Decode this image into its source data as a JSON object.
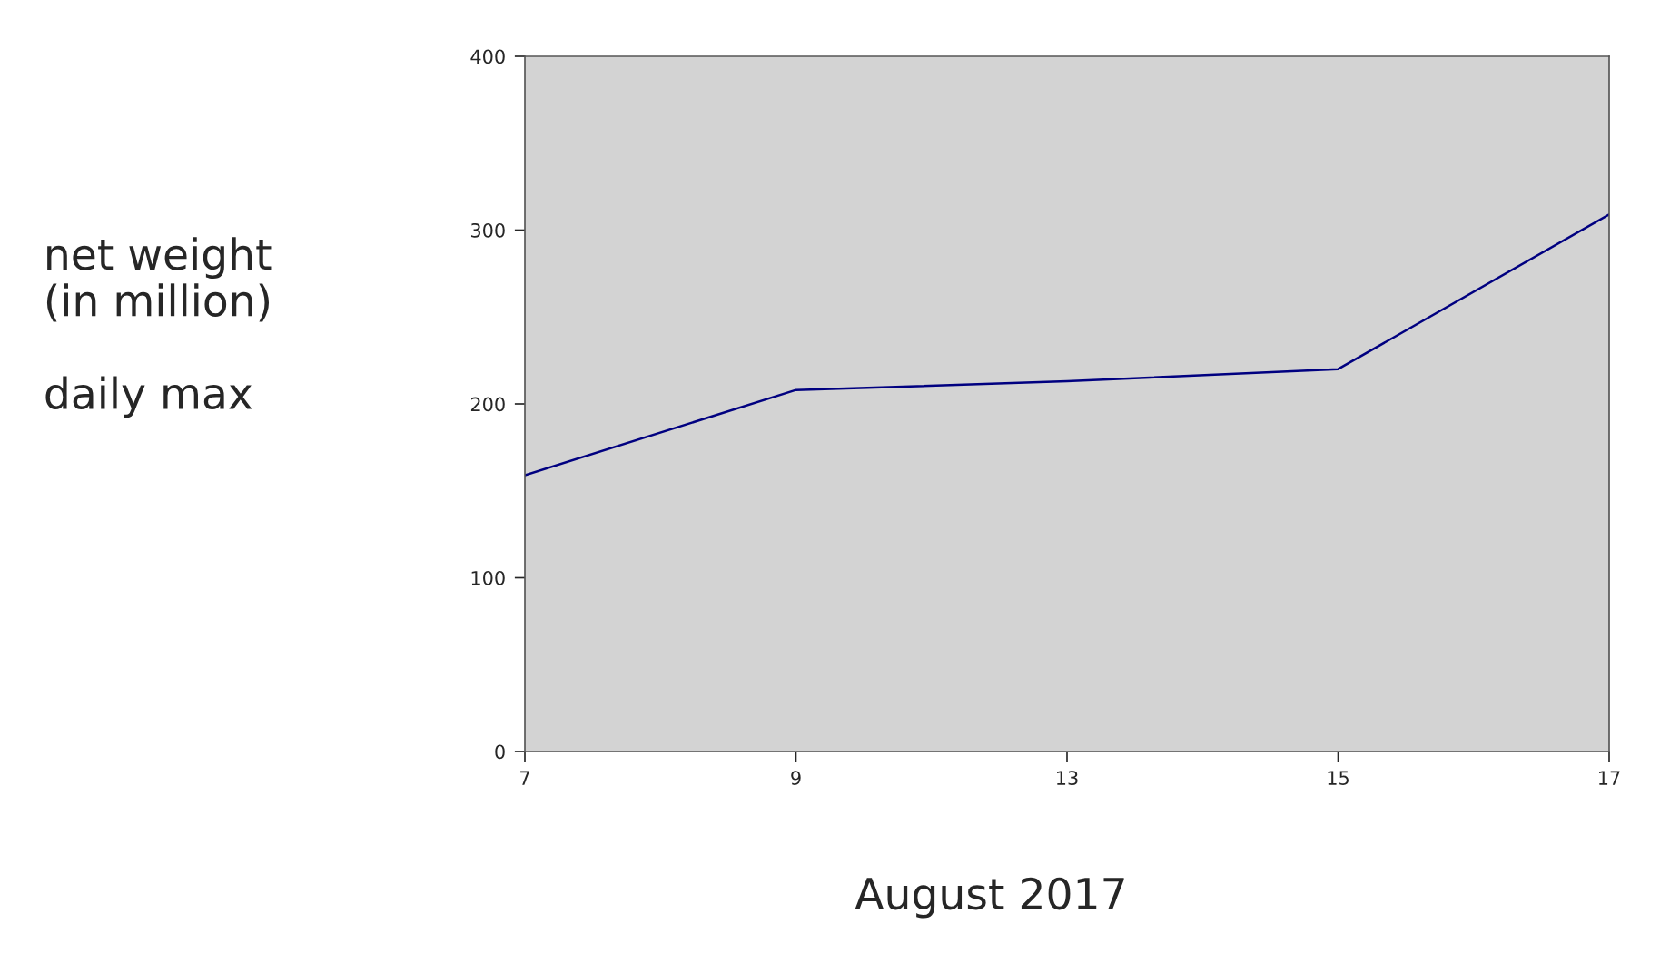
{
  "chart_data": {
    "type": "line",
    "ylabel": "net weight\n(in million)\n\ndaily max",
    "xlabel": "August 2017",
    "categories": [
      "7",
      "9",
      "13",
      "15",
      "17"
    ],
    "series": [
      {
        "color": "#000080",
        "values": [
          159,
          208,
          213,
          220,
          309
        ]
      }
    ],
    "ylim": [
      0,
      400
    ],
    "yticks": [
      0,
      100,
      200,
      300,
      400
    ],
    "grid": false,
    "legend": false,
    "marker": "none",
    "line_style": "solid"
  }
}
